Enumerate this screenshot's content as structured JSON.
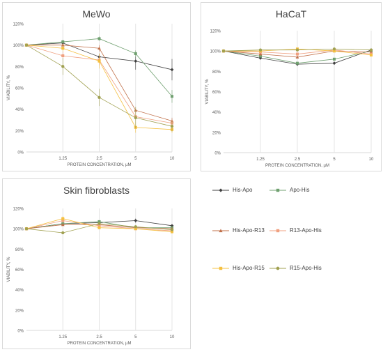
{
  "charts": [
    {
      "type": "line",
      "title": "MeWo",
      "xlabel": "PROTEIN CONCENTRATION, µM",
      "ylabel": "VIABILITY, %",
      "categories": [
        "",
        "1.25",
        "2.5",
        "5",
        "10"
      ],
      "ylim": [
        0,
        120
      ],
      "yticks": [
        "0%",
        "20%",
        "40%",
        "60%",
        "80%",
        "100%",
        "120%"
      ],
      "series": [
        {
          "name": "His-Apo",
          "values": [
            100,
            102,
            89,
            85,
            77
          ],
          "errors": [
            0,
            3,
            3,
            8,
            10
          ]
        },
        {
          "name": "Apo-His",
          "values": [
            100,
            103,
            106,
            92,
            52
          ],
          "errors": [
            0,
            2,
            2,
            3,
            6
          ]
        },
        {
          "name": "His-Apo-R13",
          "values": [
            100,
            100,
            97,
            39,
            29
          ],
          "errors": [
            0,
            2,
            3,
            3,
            3
          ]
        },
        {
          "name": "R13-Apo-His",
          "values": [
            100,
            90,
            86,
            33,
            27
          ],
          "errors": [
            0,
            4,
            5,
            4,
            3
          ]
        },
        {
          "name": "His-Apo-R15",
          "values": [
            100,
            97,
            85,
            23,
            21
          ],
          "errors": [
            0,
            3,
            7,
            5,
            3
          ]
        },
        {
          "name": "R15-Apo-His",
          "values": [
            100,
            80,
            51,
            32,
            24
          ],
          "errors": [
            0,
            8,
            8,
            10,
            5
          ]
        }
      ]
    },
    {
      "type": "line",
      "title": "HaCaT",
      "xlabel": "PROTEIN CONCENTRATION, µM",
      "ylabel": "VIABILITY, %",
      "categories": [
        "",
        "1.25",
        "2.5",
        "5",
        "10"
      ],
      "ylim": [
        0,
        120
      ],
      "yticks": [
        "0%",
        "20%",
        "40%",
        "60%",
        "80%",
        "100%",
        "120%"
      ],
      "series": [
        {
          "name": "His-Apo",
          "values": [
            100,
            93,
            87,
            88,
            101
          ],
          "errors": [
            0,
            1,
            1,
            1,
            1
          ]
        },
        {
          "name": "Apo-His",
          "values": [
            100,
            95,
            88,
            92,
            100
          ],
          "errors": [
            0,
            1,
            1,
            1,
            1
          ]
        },
        {
          "name": "His-Apo-R13",
          "values": [
            100,
            97,
            94,
            100,
            99
          ],
          "errors": [
            0,
            1,
            1,
            1,
            1
          ]
        },
        {
          "name": "R13-Apo-His",
          "values": [
            100,
            99,
            97,
            101,
            97
          ],
          "errors": [
            0,
            1,
            1,
            1,
            1
          ]
        },
        {
          "name": "His-Apo-R15",
          "values": [
            100,
            100,
            102,
            100,
            96
          ],
          "errors": [
            0,
            1,
            1,
            1,
            1
          ]
        },
        {
          "name": "R15-Apo-His",
          "values": [
            100,
            101,
            101,
            102,
            101
          ],
          "errors": [
            0,
            1,
            1,
            1,
            1
          ]
        }
      ]
    },
    {
      "type": "line",
      "title": "Skin fibroblasts",
      "xlabel": "PROTEIN CONCENTRATION, µM",
      "ylabel": "VIABILITY, %",
      "categories": [
        "",
        "1.25",
        "2.5",
        "5",
        "10"
      ],
      "ylim": [
        0,
        120
      ],
      "yticks": [
        "0%",
        "20%",
        "40%",
        "60%",
        "80%",
        "100%",
        "120%"
      ],
      "series": [
        {
          "name": "His-Apo",
          "values": [
            100,
            105,
            106,
            108,
            103
          ],
          "errors": [
            0,
            1,
            1,
            2,
            1
          ]
        },
        {
          "name": "Apo-His",
          "values": [
            100,
            105,
            107,
            101,
            101
          ],
          "errors": [
            0,
            1,
            1,
            1,
            1
          ]
        },
        {
          "name": "His-Apo-R13",
          "values": [
            100,
            104,
            104,
            101,
            100
          ],
          "errors": [
            0,
            1,
            1,
            1,
            1
          ]
        },
        {
          "name": "R13-Apo-His",
          "values": [
            100,
            108,
            103,
            100,
            98
          ],
          "errors": [
            0,
            2,
            1,
            1,
            1
          ]
        },
        {
          "name": "His-Apo-R15",
          "values": [
            100,
            110,
            101,
            100,
            97
          ],
          "errors": [
            0,
            2,
            1,
            1,
            1
          ]
        },
        {
          "name": "R15-Apo-His",
          "values": [
            100,
            96,
            105,
            102,
            99
          ],
          "errors": [
            0,
            1,
            1,
            1,
            1
          ]
        }
      ]
    }
  ],
  "legend": [
    {
      "name": "His-Apo",
      "color": "#404040",
      "marker": "diamond"
    },
    {
      "name": "Apo-His",
      "color": "#70a070",
      "marker": "square"
    },
    {
      "name": "His-Apo-R13",
      "color": "#c0704a",
      "marker": "triangle"
    },
    {
      "name": "R13-Apo-His",
      "color": "#f0a080",
      "marker": "square"
    },
    {
      "name": "His-Apo-R15",
      "color": "#f5c040",
      "marker": "square"
    },
    {
      "name": "R15-Apo-His",
      "color": "#a0a050",
      "marker": "circle"
    }
  ]
}
